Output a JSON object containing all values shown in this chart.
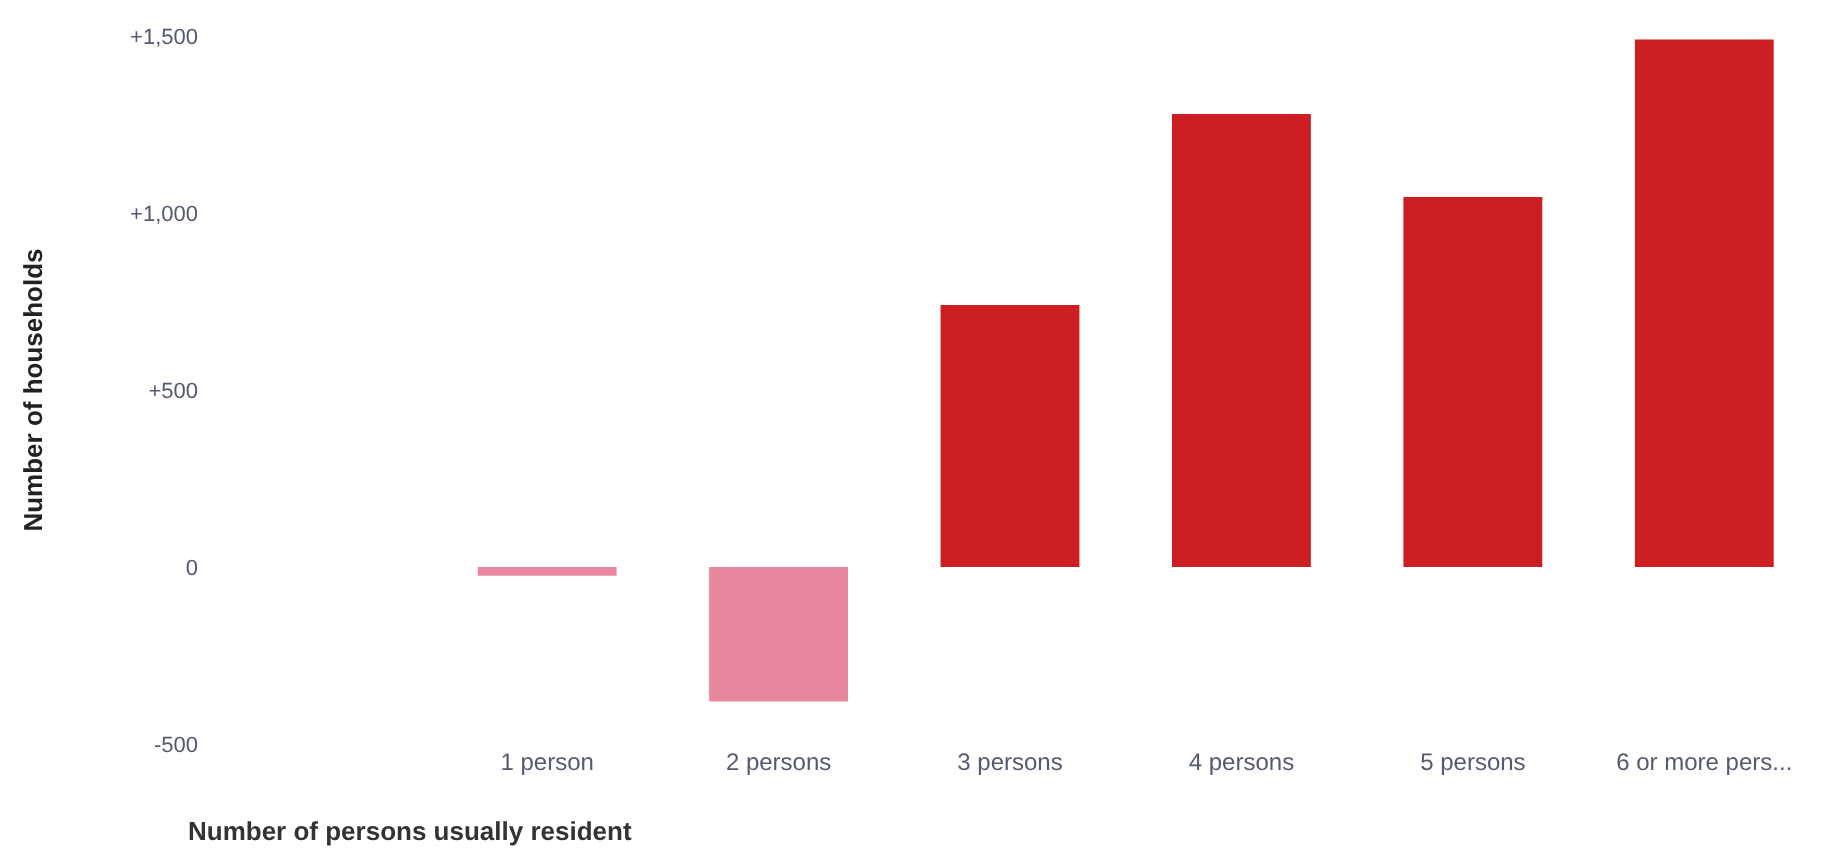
{
  "chart_data": {
    "type": "bar",
    "xlabel": "Number of persons usually resident",
    "ylabel": "Number of households",
    "categories": [
      null,
      "1 person",
      "2 persons",
      "3 persons",
      "4 persons",
      "5 persons",
      "6 or more pers..."
    ],
    "values": [
      null,
      -25,
      -380,
      740,
      1280,
      1045,
      1490
    ],
    "colors": [
      "#cc1f24",
      "#e8879e",
      "#e8879e",
      "#cc1f24",
      "#cc1f24",
      "#cc1f24",
      "#cc1f24"
    ],
    "ylim": [
      -500,
      1500
    ],
    "yticks": [
      {
        "value": -500,
        "label": "-500"
      },
      0,
      {
        "value": 500,
        "label": "+500"
      },
      {
        "value": 1000,
        "label": "+1,000"
      },
      {
        "value": 1500,
        "label": "+1,500"
      }
    ],
    "grid": false
  }
}
